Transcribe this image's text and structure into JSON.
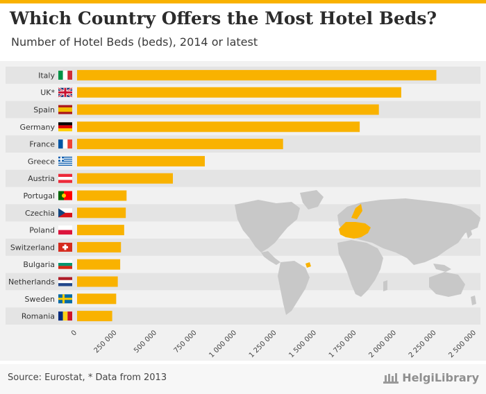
{
  "header": {
    "title": "Which Country Offers the Most Hotel Beds?",
    "subtitle": "Number of Hotel Beds (beds), 2014 or latest"
  },
  "footer": {
    "source": "Source: Eurostat, * Data from 2013",
    "brand": "HelgiLibrary"
  },
  "colors": {
    "bar": "#f9b200",
    "accent": "#f9b200",
    "row_band": "#e4e4e4",
    "background": "#f1f1f1",
    "map": "#c8c8c8"
  },
  "chart_data": {
    "type": "bar",
    "orientation": "horizontal",
    "categories": [
      "Italy",
      "UK*",
      "Spain",
      "Germany",
      "France",
      "Greece",
      "Austria",
      "Portugal",
      "Czechia",
      "Poland",
      "Switzerland",
      "Bulgaria",
      "Netherlands",
      "Sweden",
      "Romania"
    ],
    "values": [
      2250000,
      2030000,
      1890000,
      1770000,
      1290000,
      800000,
      600000,
      310000,
      305000,
      295000,
      275000,
      270000,
      255000,
      245000,
      220000
    ],
    "flags": [
      "italy-flag",
      "uk-flag",
      "spain-flag",
      "germany-flag",
      "france-flag",
      "greece-flag",
      "austria-flag",
      "portugal-flag",
      "czechia-flag",
      "poland-flag",
      "switzerland-flag",
      "bulgaria-flag",
      "netherlands-flag",
      "sweden-flag",
      "romania-flag"
    ],
    "x_ticks": [
      0,
      250000,
      500000,
      750000,
      1000000,
      1250000,
      1500000,
      1750000,
      2000000,
      2250000,
      2500000
    ],
    "x_tick_labels": [
      "0",
      "250 000",
      "500 000",
      "750 000",
      "1 000 000",
      "1 250 000",
      "1 500 000",
      "1 750 000",
      "2 000 000",
      "2 250 000",
      "2 500 000"
    ],
    "xlim": [
      0,
      2500000
    ],
    "grid": false,
    "legend": "none",
    "background": "world map with European countries highlighted"
  }
}
